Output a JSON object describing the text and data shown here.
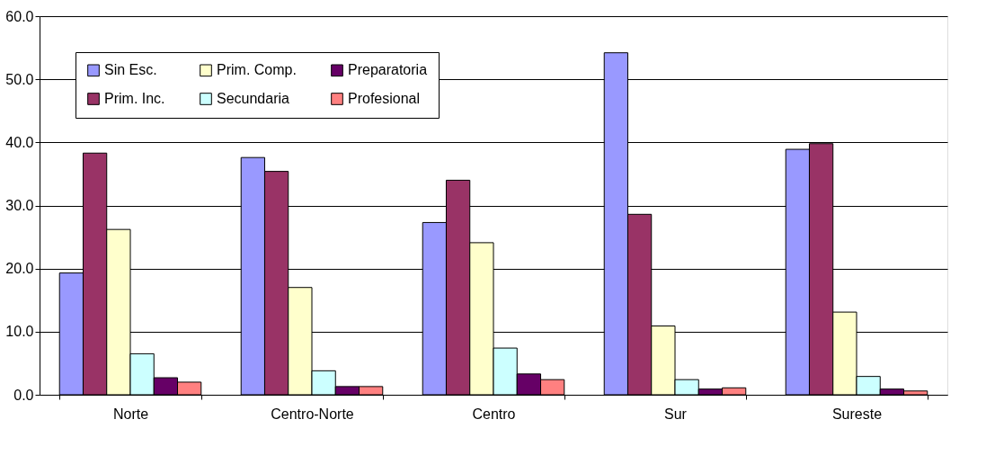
{
  "chart_data": {
    "type": "bar",
    "categories": [
      "Norte",
      "Centro-Norte",
      "Centro",
      "Sur",
      "Sureste"
    ],
    "series": [
      {
        "name": "Sin Esc.",
        "color": "#9999ff",
        "values": [
          19.3,
          37.6,
          27.3,
          54.2,
          38.9
        ]
      },
      {
        "name": "Prim. Inc.",
        "color": "#993366",
        "values": [
          38.3,
          35.4,
          34.0,
          28.6,
          39.8
        ]
      },
      {
        "name": "Prim. Comp.",
        "color": "#ffffcc",
        "values": [
          26.2,
          17.0,
          24.1,
          10.9,
          13.1
        ]
      },
      {
        "name": "Secundaria",
        "color": "#ccffff",
        "values": [
          6.5,
          3.8,
          7.4,
          2.4,
          2.9
        ]
      },
      {
        "name": "Preparatoria",
        "color": "#660066",
        "values": [
          2.7,
          1.3,
          3.3,
          0.9,
          0.9
        ]
      },
      {
        "name": "Profesional",
        "color": "#ff8080",
        "values": [
          2.0,
          1.3,
          2.4,
          1.1,
          0.6
        ]
      }
    ],
    "ylim": [
      0,
      60
    ],
    "yticks": [
      {
        "value": 0,
        "label": "0.0"
      },
      {
        "value": 10,
        "label": "10.0"
      },
      {
        "value": 20,
        "label": "20.0"
      },
      {
        "value": 30,
        "label": "30.0"
      },
      {
        "value": 40,
        "label": "40.0"
      },
      {
        "value": 50,
        "label": "50.0"
      },
      {
        "value": 60,
        "label": "60.0"
      }
    ],
    "grid": "y",
    "legend": "top left"
  }
}
